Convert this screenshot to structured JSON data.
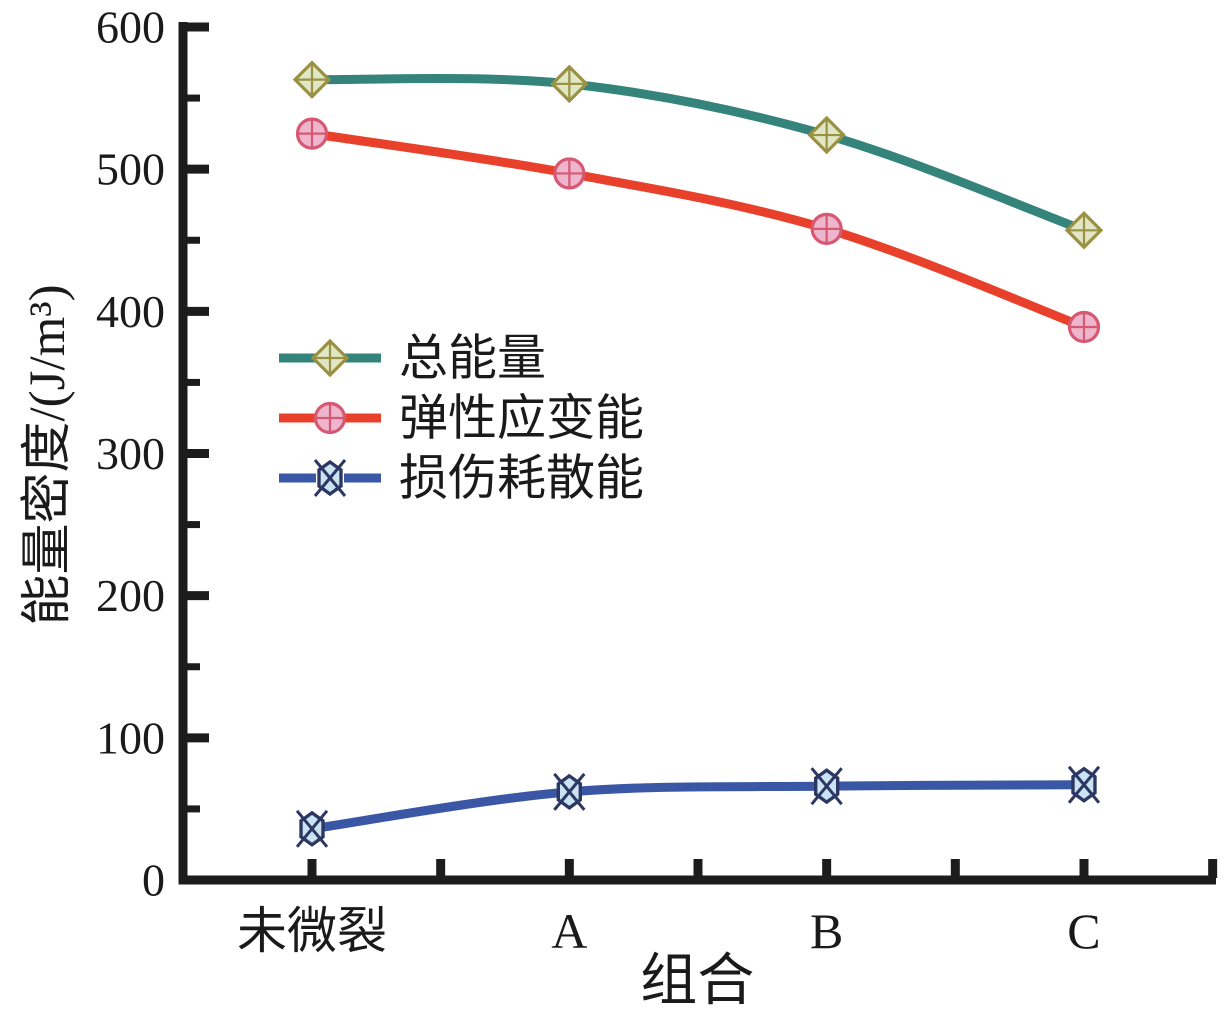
{
  "chart_data": {
    "type": "line",
    "title": "",
    "xlabel": "组合",
    "ylabel": "能量密度/(J/m³)",
    "categories": [
      "未微裂",
      "A",
      "B",
      "C"
    ],
    "series": [
      {
        "name": "总能量",
        "marker": "diamond-cross",
        "line_color": "#35847b",
        "marker_fill": "#dfe7c4",
        "marker_stroke": "#9a9143",
        "values": [
          563,
          560,
          524,
          457
        ]
      },
      {
        "name": "弹性应变能",
        "marker": "circle-cross",
        "line_color": "#e8402a",
        "marker_fill": "#edb6cd",
        "marker_stroke": "#d65873",
        "values": [
          525,
          497,
          458,
          389
        ]
      },
      {
        "name": "损伤耗散能",
        "marker": "hexagon-x",
        "line_color": "#3a57a5",
        "marker_fill": "#c9e3f2",
        "marker_stroke": "#2c3763",
        "values": [
          36,
          62,
          66,
          67
        ]
      }
    ],
    "ylim": [
      0,
      600
    ],
    "y_major_step": 100,
    "y_minor_step": 50,
    "y_tick_labels": [
      "0",
      "100",
      "200",
      "300",
      "400",
      "500",
      "600"
    ],
    "grid": false,
    "legend_position": "inside-left-middle",
    "axis_color": "#1c1c1c",
    "text_color": "#1a1a1a"
  }
}
